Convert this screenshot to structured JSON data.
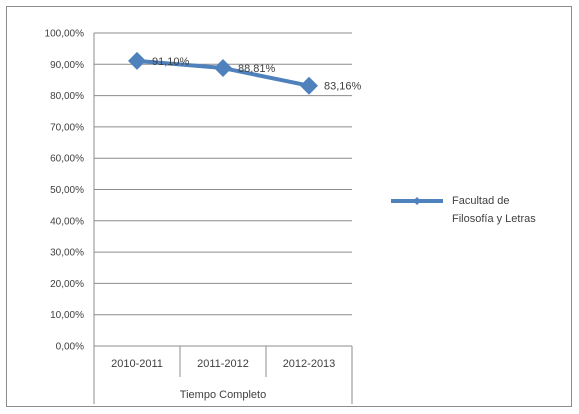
{
  "chart_data": {
    "type": "line",
    "categories": [
      "2010-2011",
      "2011-2012",
      "2012-2013"
    ],
    "category_group_label": "Tiempo Completo",
    "y_ticks": [
      "0,00%",
      "10,00%",
      "20,00%",
      "30,00%",
      "40,00%",
      "50,00%",
      "60,00%",
      "70,00%",
      "80,00%",
      "90,00%",
      "100,00%"
    ],
    "ylim": [
      0,
      100
    ],
    "grid": true,
    "legend_position": "right",
    "series": [
      {
        "name": "Facultad de Filosofía y Letras",
        "name_lines": [
          "Facultad de",
          "Filosofía y Letras"
        ],
        "values": [
          91.1,
          88.81,
          83.16
        ],
        "data_labels": [
          "91,10%",
          "88,81%",
          "83,16%"
        ],
        "color": "#4f81bd"
      }
    ]
  }
}
